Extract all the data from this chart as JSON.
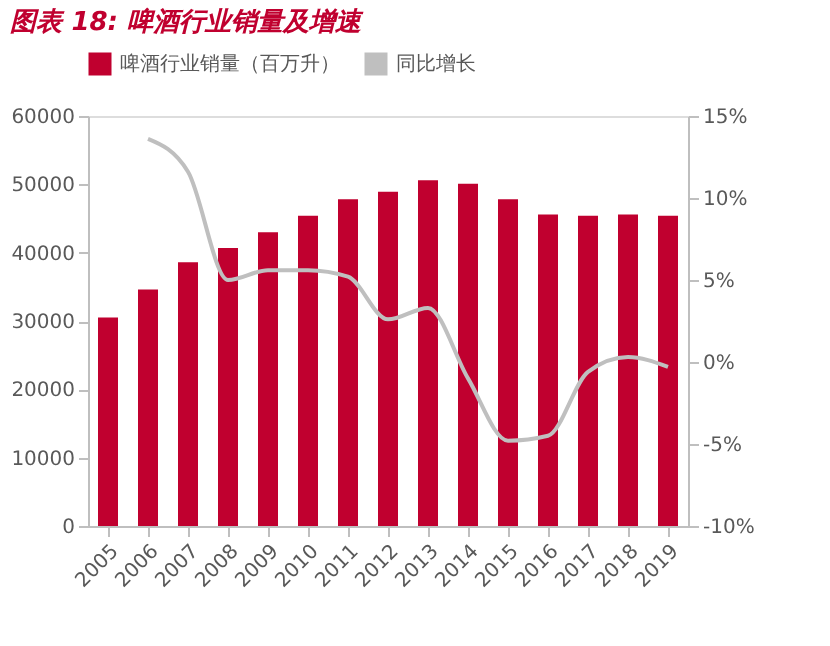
{
  "chart_data": {
    "type": "bar",
    "title": "图表 18:  啤酒行业销量及增速",
    "categories": [
      "2005",
      "2006",
      "2007",
      "2008",
      "2009",
      "2010",
      "2011",
      "2012",
      "2013",
      "2014",
      "2015",
      "2016",
      "2017",
      "2018",
      "2019"
    ],
    "series": [
      {
        "name": "啤酒行业销量（百万升）",
        "color": "#c0002f",
        "values": [
          30500,
          34600,
          38600,
          40700,
          43000,
          45400,
          47800,
          48900,
          50600,
          50100,
          47800,
          45600,
          45400,
          45600,
          45400
        ]
      },
      {
        "name": "同比增长",
        "type": "line",
        "axis": "y2",
        "color": "#bfbfbf",
        "marker": "none",
        "line_style": "solid",
        "values": [
          null,
          13.6,
          11.6,
          5.0,
          5.6,
          5.6,
          5.2,
          2.6,
          3.3,
          -1.0,
          -4.8,
          -4.5,
          -0.6,
          0.3,
          -0.3
        ]
      }
    ],
    "ylim": [
      0,
      60000
    ],
    "yticks": [
      0,
      10000,
      20000,
      30000,
      40000,
      50000,
      60000
    ],
    "y2lim": [
      -10,
      15
    ],
    "y2ticks": [
      {
        "value": -10,
        "label": "-10%"
      },
      {
        "value": -5,
        "label": "-5%"
      },
      {
        "value": 0,
        "label": "0%"
      },
      {
        "value": 5,
        "label": "5%"
      },
      {
        "value": 10,
        "label": "10%"
      },
      {
        "value": 15,
        "label": "15%"
      }
    ],
    "grid": false,
    "legend": "top"
  }
}
